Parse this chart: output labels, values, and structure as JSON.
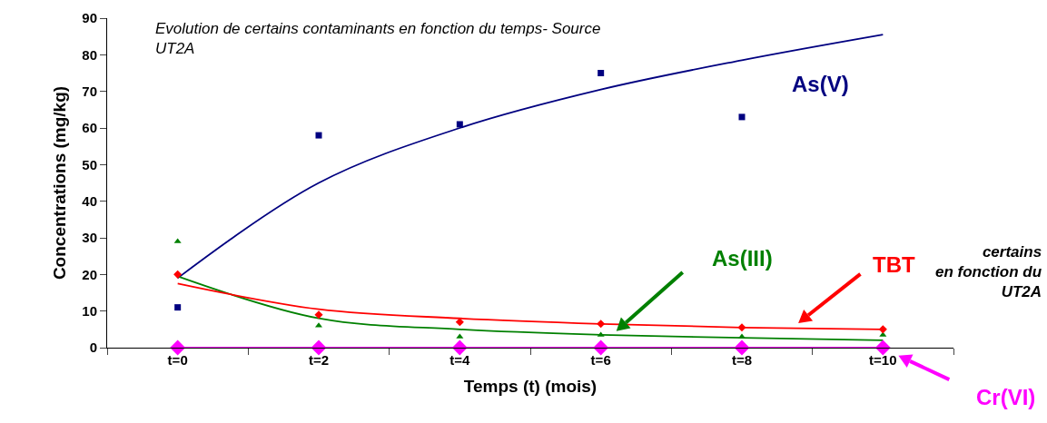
{
  "chart_data": {
    "type": "scatter",
    "title": "Evolution de certains contaminants en fonction du temps- Source\nUT2A",
    "xlabel": "Temps (t) (mois)",
    "ylabel": "Concentrations (mg/kg)",
    "categories": [
      "t=0",
      "t=2",
      "t=4",
      "t=6",
      "t=8",
      "t=10"
    ],
    "ylim": [
      0,
      90
    ],
    "yticks": [
      0,
      10,
      20,
      30,
      40,
      50,
      60,
      70,
      80,
      90
    ],
    "legend": false,
    "series": [
      {
        "name": "As(V)",
        "marker": "square",
        "color": "#000080",
        "values": [
          11,
          58,
          61,
          75,
          63,
          null
        ]
      },
      {
        "type": "line",
        "marker": "none",
        "color": "#000080",
        "values": [
          19,
          45,
          60,
          70.5,
          78.5,
          85.5
        ]
      },
      {
        "name": "As(III)",
        "marker": "triangle",
        "color": "#008000",
        "values": [
          29,
          6,
          3,
          3.5,
          3,
          3.5
        ]
      },
      {
        "type": "line",
        "marker": "none",
        "color": "#008000",
        "values": [
          19.5,
          8,
          5,
          3.5,
          2.7,
          2
        ]
      },
      {
        "name": "TBT",
        "marker": "diamond",
        "color": "#ff0000",
        "values": [
          20,
          9,
          7,
          6.5,
          5.5,
          5
        ]
      },
      {
        "type": "line",
        "marker": "none",
        "color": "#ff0000",
        "values": [
          17.5,
          10.5,
          8,
          6.5,
          5.5,
          5
        ]
      },
      {
        "name": "Cr(VI)",
        "type": "line",
        "marker": "diamond",
        "color": "#ff00ff",
        "values": [
          0,
          0,
          0,
          0,
          0,
          0
        ]
      }
    ],
    "annotations": [
      "certains\nen fonction du\nUT2A"
    ]
  }
}
